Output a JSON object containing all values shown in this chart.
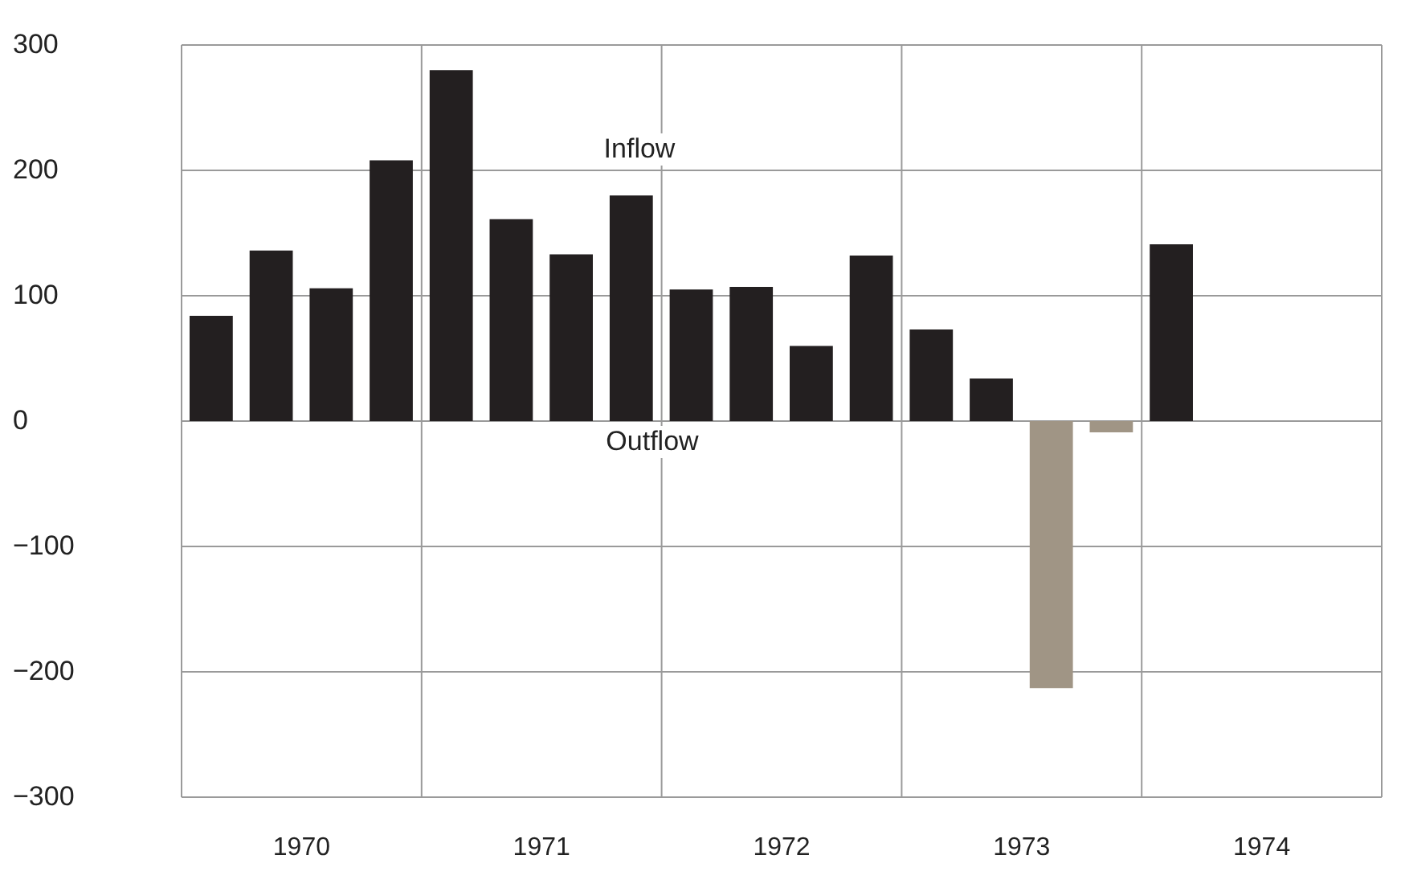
{
  "chart_data": {
    "type": "bar",
    "x": [
      1970.125,
      1970.375,
      1970.625,
      1970.875,
      1971.125,
      1971.375,
      1971.625,
      1971.875,
      1972.125,
      1972.375,
      1972.625,
      1972.875,
      1973.125,
      1973.375,
      1973.625,
      1973.875,
      1974.125
    ],
    "values": [
      84,
      136,
      106,
      208,
      280,
      161,
      133,
      180,
      105,
      107,
      60,
      132,
      73,
      34,
      -213,
      -9,
      141
    ],
    "colors": [
      "#231f20",
      "#231f20",
      "#231f20",
      "#231f20",
      "#231f20",
      "#231f20",
      "#231f20",
      "#231f20",
      "#231f20",
      "#231f20",
      "#231f20",
      "#231f20",
      "#231f20",
      "#231f20",
      "#a09585",
      "#a09585",
      "#231f20"
    ],
    "xlim": [
      1970,
      1975
    ],
    "xticks": [
      {
        "value": 1970,
        "label": null
      },
      {
        "value": 1970.5,
        "label": "1970"
      },
      {
        "value": 1971,
        "label": null
      },
      {
        "value": 1971.5,
        "label": "1971"
      },
      {
        "value": 1972,
        "label": null
      },
      {
        "value": 1972.5,
        "label": "1972"
      },
      {
        "value": 1973,
        "label": null
      },
      {
        "value": 1973.5,
        "label": "1973"
      },
      {
        "value": 1974,
        "label": null
      },
      {
        "value": 1974.5,
        "label": "1974"
      },
      {
        "value": 1975,
        "label": null
      }
    ],
    "ylim": [
      -300,
      300
    ],
    "yticks": [
      -300,
      -200,
      -100,
      0,
      100,
      200,
      300
    ],
    "grid": true,
    "annotations": [
      "Inflow",
      "Outflow"
    ]
  }
}
